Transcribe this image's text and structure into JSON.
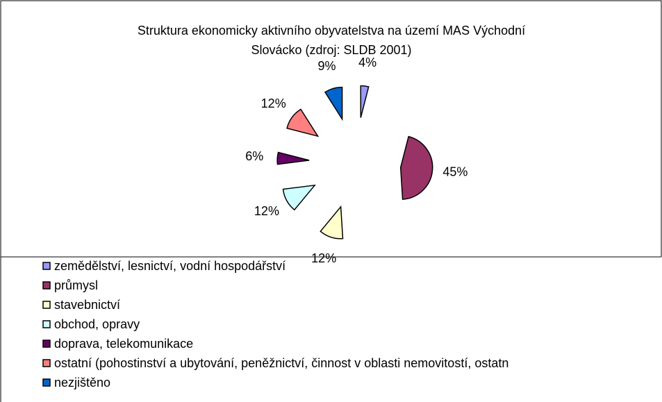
{
  "chart_data": {
    "type": "pie",
    "title": [
      "Struktura ekonomicky aktivního obyvatelstva na území MAS Východní",
      "Slovácko (zdroj: SLDB 2001)"
    ],
    "categories": [
      "zemědělství, lesnictví, vodní hospodářství",
      "průmysl",
      "stavebnictví",
      "obchod, opravy",
      "doprava, telekomunikace",
      "ostatní (pohostinství a ubytování, peněžnictví, činnost v oblasti nemovitostí, ostatn",
      "nezjištěno"
    ],
    "values": [
      4,
      45,
      12,
      12,
      6,
      12,
      9
    ],
    "colors": [
      "#9999ff",
      "#993366",
      "#ffffcc",
      "#ccffff",
      "#660066",
      "#ff8080",
      "#0066cc"
    ],
    "legend": "bottom"
  }
}
